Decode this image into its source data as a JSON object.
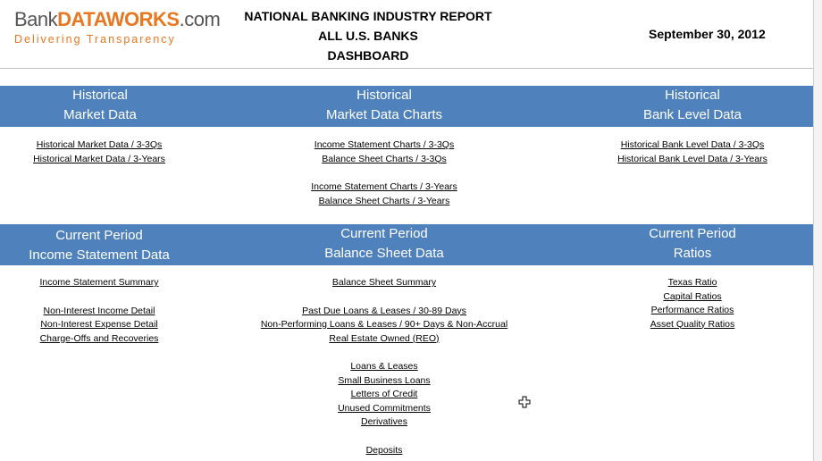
{
  "header": {
    "logo_text_bank": "Bank",
    "logo_text_dataworks": "DATAWORKS",
    "logo_text_com": ".com",
    "logo_tagline": "Delivering Transparency",
    "title_line1": "NATIONAL BANKING INDUSTRY REPORT",
    "title_line2": "ALL U.S. BANKS",
    "title_line3": "DASHBOARD",
    "date": "September 30, 2012"
  },
  "sections": {
    "historical": {
      "market_data": {
        "heading_line1": "Historical",
        "heading_line2": "Market Data",
        "links": [
          "Historical Market Data / 3-3Qs",
          "Historical Market Data / 3-Years"
        ]
      },
      "market_data_charts": {
        "heading_line1": "Historical",
        "heading_line2": "Market Data Charts",
        "links": [
          "Income Statement Charts / 3-3Qs",
          "Balance Sheet Charts / 3-3Qs",
          "Income Statement Charts / 3-Years",
          "Balance Sheet Charts / 3-Years"
        ]
      },
      "bank_level_data": {
        "heading_line1": "Historical",
        "heading_line2": "Bank Level Data",
        "links": [
          "Historical Bank Level Data / 3-3Qs",
          "Historical Bank Level Data / 3-Years"
        ]
      }
    },
    "current": {
      "income_statement": {
        "heading_line1": "Current Period",
        "heading_line2": "Income Statement Data",
        "links": [
          "Income Statement Summary",
          "Non-Interest Income Detail",
          "Non-Interest Expense Detail",
          "Charge-Offs and Recoveries"
        ]
      },
      "balance_sheet": {
        "heading_line1": "Current Period",
        "heading_line2": "Balance Sheet Data",
        "links": [
          "Balance Sheet Summary",
          "Past Due Loans & Leases / 30-89 Days",
          "Non-Performing Loans & Leases / 90+ Days & Non-Accrual",
          "Real Estate Owned (REO)",
          "Loans & Leases",
          "Small Business Loans",
          "Letters of Credit",
          "Unused Commitments",
          "Derivatives",
          "Deposits"
        ]
      },
      "ratios": {
        "heading_line1": "Current Period",
        "heading_line2": "Ratios",
        "links": [
          "Texas Ratio",
          "Capital Ratios",
          "Performance Ratios",
          "Asset Quality Ratios"
        ]
      }
    }
  },
  "colors": {
    "band": "#4f81bd",
    "brand_orange": "#e87722",
    "brand_gray": "#555555"
  },
  "cursor": {
    "icon": "plus-cursor-icon"
  }
}
